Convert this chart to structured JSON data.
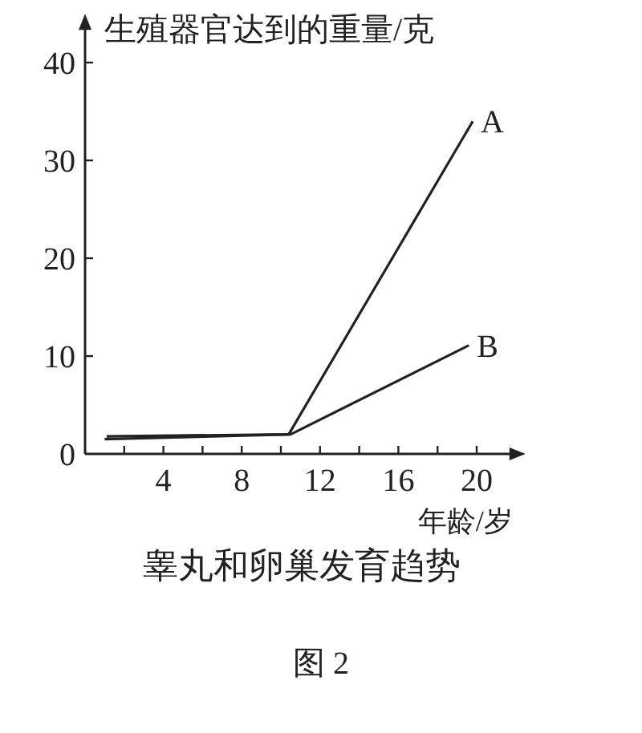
{
  "chart_data": {
    "type": "line",
    "title": "睾丸和卵巢发育趋势",
    "ylabel": "生殖器官达到的重量/克",
    "xlabel": "年龄/岁",
    "annotations": [
      "图 2"
    ],
    "series": [
      {
        "name": "A",
        "color": "#222222",
        "x": [
          1.1,
          10.4,
          19.8
        ],
        "values": [
          1.8,
          2,
          34
        ]
      },
      {
        "name": "B",
        "color": "#222222",
        "x": [
          1,
          10.5,
          19.6
        ],
        "values": [
          1.5,
          2,
          11.1
        ]
      }
    ],
    "xlim": [
      0,
      22
    ],
    "ylim": [
      0,
      44
    ],
    "xticks": [
      {
        "value": 2,
        "label": null
      },
      4,
      {
        "value": 6,
        "label": null
      },
      8,
      {
        "value": 10,
        "label": null
      },
      12,
      {
        "value": 14,
        "label": null
      },
      16,
      {
        "value": 18,
        "label": null
      },
      20
    ],
    "yticks": [
      0,
      10,
      20,
      30,
      40
    ],
    "marker": "none",
    "line_style": "solid"
  }
}
